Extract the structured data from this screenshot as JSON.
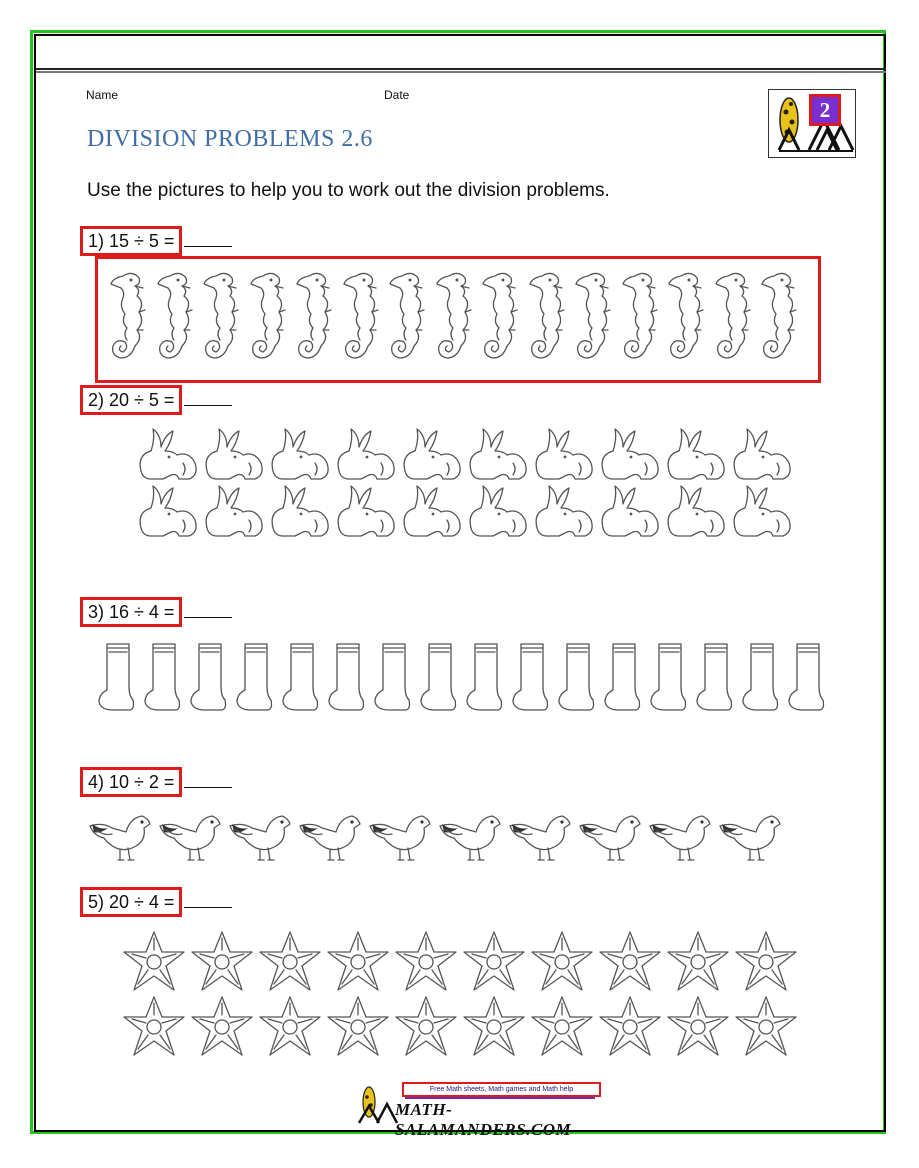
{
  "header": {
    "name_label": "Name",
    "date_label": "Date",
    "grade_badge": "2"
  },
  "title": "DIVISION PROBLEMS 2.6",
  "instructions": "Use the pictures to help you to work out the division problems.",
  "problems": [
    {
      "label": "1) 15 ÷ 5 =",
      "picture": "seahorse-icon",
      "count": 15
    },
    {
      "label": "2) 20 ÷ 5 =",
      "picture": "rabbit-icon",
      "count": 20
    },
    {
      "label": "3) 16 ÷ 4 =",
      "picture": "boot-icon",
      "count": 16
    },
    {
      "label": "4) 10 ÷ 2 =",
      "picture": "bird-icon",
      "count": 10
    },
    {
      "label": "5) 20 ÷ 4 =",
      "picture": "starfish-icon",
      "count": 20
    }
  ],
  "footer": {
    "link_text": "Free Math sheets, Math games and Math help",
    "brand": "MATH-SALAMANDERS.COM"
  },
  "colors": {
    "frame": "#22c51d",
    "highlight": "#e01b1b",
    "title": "#3f6ea6",
    "badge": "#7a2fd0"
  }
}
